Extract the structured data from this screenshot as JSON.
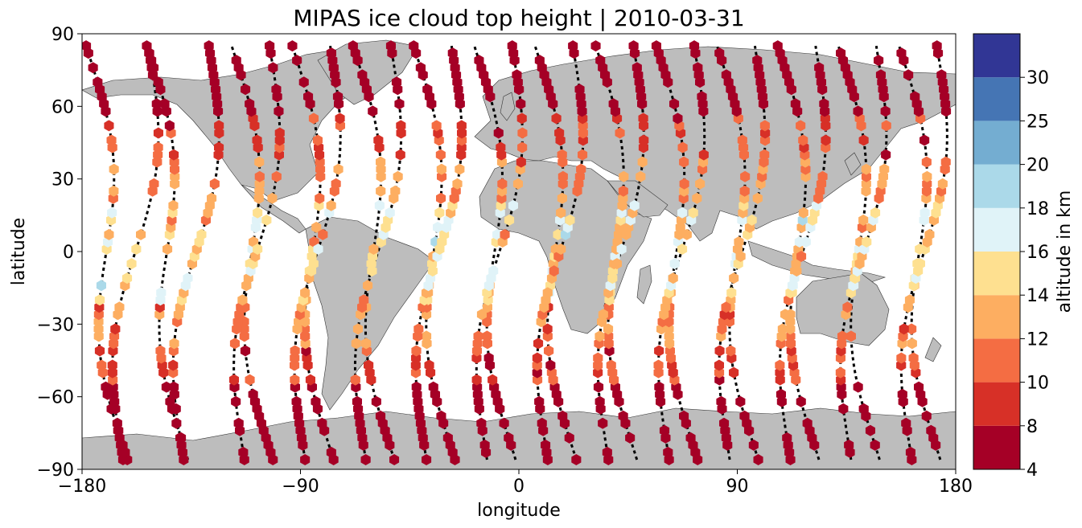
{
  "chart_data": {
    "type": "scatter",
    "title": "MIPAS ice cloud top height | 2010-03-31",
    "xlabel": "longitude",
    "ylabel": "latitude",
    "xlim": [
      -180,
      180
    ],
    "ylim": [
      -90,
      90
    ],
    "x_ticks": [
      "−180",
      "−90",
      "0",
      "90",
      "180"
    ],
    "y_ticks": [
      "−90",
      "−60",
      "−30",
      "0",
      "30",
      "60",
      "90"
    ],
    "x_tick_values": [
      -180,
      -90,
      0,
      90,
      180
    ],
    "y_tick_values": [
      -90,
      -60,
      -30,
      0,
      30,
      60,
      90
    ],
    "grid": false,
    "land_color": "#bdbdbd",
    "track_color": "#000000",
    "colorbar": {
      "label": "altitude in km",
      "bounds": [
        4,
        8,
        10,
        12,
        14,
        16,
        18,
        20,
        25,
        30
      ],
      "tick_labels": [
        "4",
        "8",
        "10",
        "12",
        "14",
        "16",
        "18",
        "20",
        "25",
        "30"
      ],
      "colors": [
        "#a50026",
        "#d73027",
        "#f46d43",
        "#fdae61",
        "#fee090",
        "#e0f3f8",
        "#abd9e9",
        "#74add1",
        "#4575b4",
        "#313695"
      ]
    },
    "orbits": [
      {
        "asc_lon": -158,
        "desc_lon": -110
      },
      {
        "asc_lon": -133,
        "desc_lon": -85
      },
      {
        "asc_lon": -108,
        "desc_lon": -60
      },
      {
        "asc_lon": -83,
        "desc_lon": -35
      },
      {
        "asc_lon": -58,
        "desc_lon": -10
      },
      {
        "asc_lon": -33,
        "desc_lon": 15
      },
      {
        "asc_lon": -8,
        "desc_lon": 40
      },
      {
        "asc_lon": 17,
        "desc_lon": 65
      },
      {
        "asc_lon": 42,
        "desc_lon": 90
      },
      {
        "asc_lon": 67,
        "desc_lon": 115
      },
      {
        "asc_lon": 92,
        "desc_lon": 140
      },
      {
        "asc_lon": 117,
        "desc_lon": 165
      },
      {
        "asc_lon": 142,
        "desc_lon": 190
      },
      {
        "asc_lon": 167,
        "desc_lon": 215
      }
    ]
  }
}
